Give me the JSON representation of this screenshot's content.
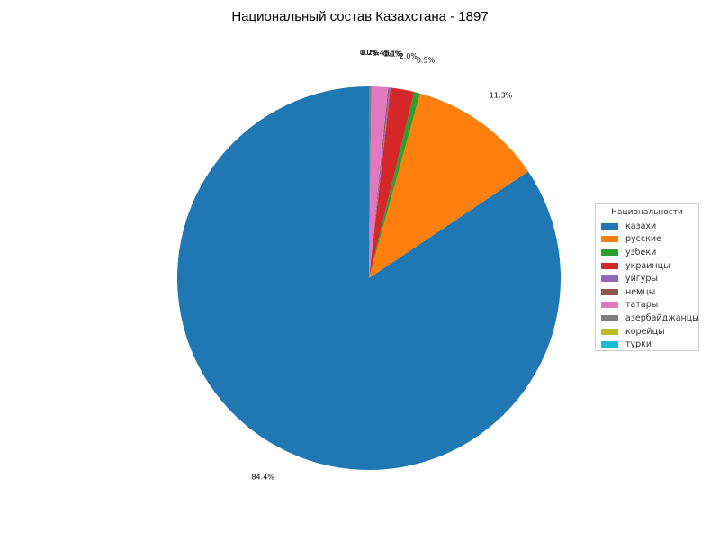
{
  "chart_data": {
    "type": "pie",
    "title": "Национальный состав Казахстана - 1897",
    "legend_title": "Национальности",
    "legend_position": "right",
    "start_angle_deg": 90,
    "direction": "counterclockwise",
    "slices": [
      {
        "name": "казахи",
        "value": 84.4,
        "label": "84.4%",
        "color": "#1f77b4"
      },
      {
        "name": "русские",
        "value": 11.3,
        "label": "11.3%",
        "color": "#ff7f0e"
      },
      {
        "name": "узбеки",
        "value": 0.5,
        "label": "0.5%",
        "color": "#2ca02c"
      },
      {
        "name": "украинцы",
        "value": 2.0,
        "label": "2.0%",
        "color": "#d62728"
      },
      {
        "name": "уйгуры",
        "value": 0.1,
        "label": "0.1%",
        "color": "#9467bd"
      },
      {
        "name": "немцы",
        "value": 0.1,
        "label": "0.1%",
        "color": "#8c564b"
      },
      {
        "name": "татары",
        "value": 1.4,
        "label": "1.4%",
        "color": "#e377c2"
      },
      {
        "name": "азербайджанцы",
        "value": 0.2,
        "label": "0.2%",
        "color": "#7f7f7f"
      },
      {
        "name": "корейцы",
        "value": 0.0,
        "label": "0.0%",
        "color": "#bcbd22"
      },
      {
        "name": "турки",
        "value": 0.0,
        "label": "0.0%",
        "color": "#17becf"
      }
    ]
  }
}
